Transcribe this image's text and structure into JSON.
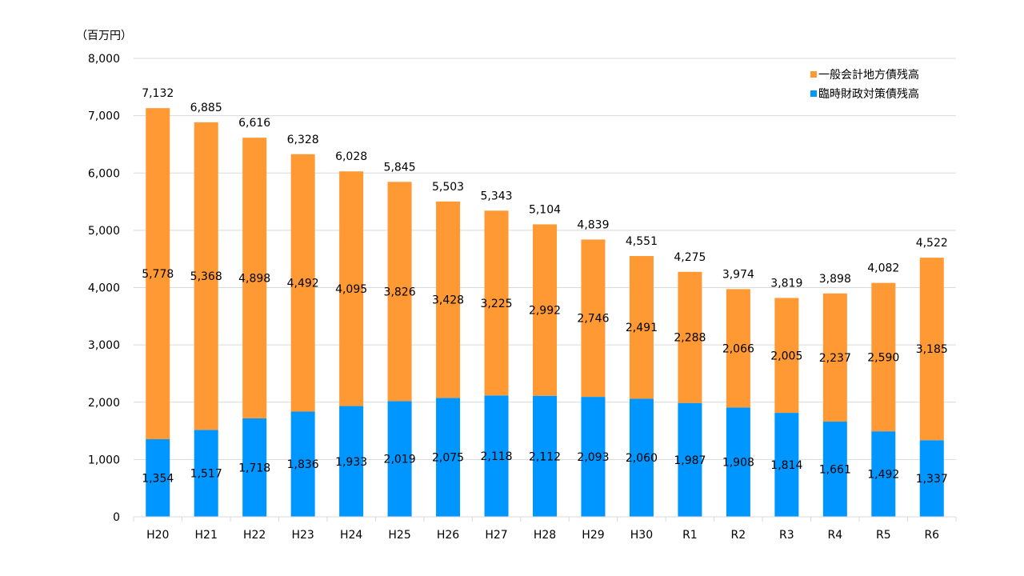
{
  "chart_data": {
    "type": "bar",
    "stacked": true,
    "unit_label": "（百万円）",
    "categories": [
      "H20",
      "H21",
      "H22",
      "H23",
      "H24",
      "H25",
      "H26",
      "H27",
      "H28",
      "H29",
      "H30",
      "R1",
      "R2",
      "R3",
      "R4",
      "R5",
      "R6"
    ],
    "series": [
      {
        "name": "臨時財政対策債残高",
        "color": "#0096ff",
        "values": [
          1354,
          1517,
          1718,
          1836,
          1933,
          2019,
          2075,
          2118,
          2112,
          2093,
          2060,
          1987,
          1908,
          1814,
          1661,
          1492,
          1337
        ]
      },
      {
        "name": "一般会計地方債残高",
        "color": "#ff9933",
        "values": [
          5778,
          5368,
          4898,
          4492,
          4095,
          3826,
          3428,
          3225,
          2992,
          2746,
          2491,
          2288,
          2066,
          2005,
          2237,
          2590,
          3185
        ]
      }
    ],
    "totals": [
      7132,
      6885,
      6616,
      6328,
      6028,
      5845,
      5503,
      5343,
      5104,
      4839,
      4551,
      4275,
      3974,
      3819,
      3898,
      4082,
      4522
    ],
    "ylim": [
      0,
      8000
    ],
    "yticks": [
      0,
      1000,
      2000,
      3000,
      4000,
      5000,
      6000,
      7000,
      8000
    ],
    "ytick_labels": [
      "0",
      "1,000",
      "2,000",
      "3,000",
      "4,000",
      "5,000",
      "6,000",
      "7,000",
      "8,000"
    ],
    "grid": true,
    "legend": {
      "position": "top-right",
      "order": [
        "一般会計地方債残高",
        "臨時財政対策債残高"
      ]
    }
  }
}
